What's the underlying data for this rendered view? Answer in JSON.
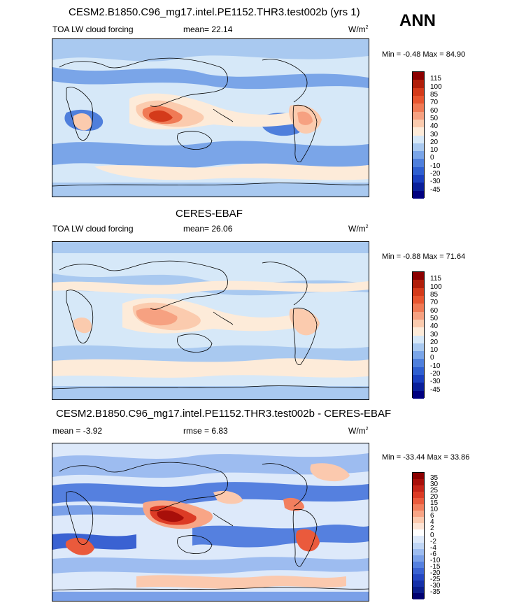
{
  "season": "ANN",
  "panels": [
    {
      "title": "CESM2.B1850.C96_mg17.intel.PE1152.THR3.test002b (yrs 1)",
      "left_label": "TOA LW cloud forcing",
      "mid_label": "mean=  22.14",
      "units": "W/m",
      "units_sup": "2",
      "minmax": "Min =  -0.48 Max =  84.90",
      "colorbar": [
        "115",
        "100",
        "85",
        "70",
        "60",
        "50",
        "40",
        "30",
        "20",
        "10",
        "0",
        "-10",
        "-20",
        "-30",
        "-45"
      ]
    },
    {
      "title": "CERES-EBAF",
      "left_label": "TOA LW cloud forcing",
      "mid_label": "mean=  26.06",
      "units": "W/m",
      "units_sup": "2",
      "minmax": "Min =  -0.88 Max =  71.64",
      "colorbar": [
        "115",
        "100",
        "85",
        "70",
        "60",
        "50",
        "40",
        "30",
        "20",
        "10",
        "0",
        "-10",
        "-20",
        "-30",
        "-45"
      ]
    },
    {
      "title": "CESM2.B1850.C96_mg17.intel.PE1152.THR3.test002b - CERES-EBAF",
      "left_label": "mean =  -3.92",
      "mid_label": "rmse =   6.83",
      "units": "W/m",
      "units_sup": "2",
      "minmax": "Min = -33.44 Max =  33.86",
      "colorbar": [
        "35",
        "30",
        "25",
        "20",
        "15",
        "10",
        "6",
        "4",
        "2",
        "0",
        "-2",
        "-4",
        "-6",
        "-10",
        "-15",
        "-20",
        "-25",
        "-30",
        "-35"
      ]
    }
  ],
  "colors": {
    "abs_scale": [
      "#8b0000",
      "#b01e0a",
      "#d43a1a",
      "#e8552f",
      "#f07a55",
      "#f6a181",
      "#fbcbae",
      "#fdebd9",
      "#d6e8f8",
      "#a9c9f0",
      "#7aa5e8",
      "#4f7fdc",
      "#2f5fd0",
      "#1a3fbf",
      "#0a1f9a",
      "#000080"
    ],
    "diff_scale": [
      "#8b0000",
      "#a80f0a",
      "#c52418",
      "#dc3b25",
      "#ea5a3c",
      "#f27f5e",
      "#f8a586",
      "#fbc9ae",
      "#fde4d5",
      "#ffffff",
      "#dde9fa",
      "#c0d6f5",
      "#9dbcf0",
      "#7aa0e8",
      "#5580df",
      "#3a62d2",
      "#2446c2",
      "#1530a8",
      "#0a1d8c",
      "#000070"
    ],
    "land_outline": "#000000"
  }
}
